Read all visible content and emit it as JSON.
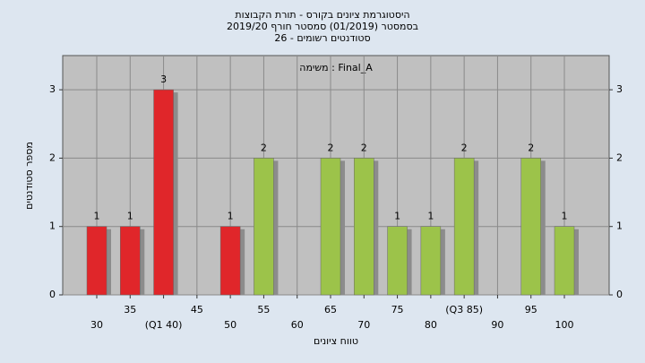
{
  "chart_data": {
    "type": "bar",
    "title": "היסטוגרמת ציונים בקורס - תורת הקבוצות",
    "subtitle": "בסמסטר  (01/2019)  סמסטר חורף 2019/20",
    "subtitle2": "סטודנטים רשומים - 26",
    "annotation": "משימה : Final_A",
    "x_label": "טווח ציונים",
    "y_label": "מספר סטודנטים",
    "categories": [
      "30",
      "35",
      "(Q1 40)",
      "45",
      "50",
      "55",
      "60",
      "65",
      "70",
      "75",
      "80",
      "(Q3 85)",
      "90",
      "95",
      "100"
    ],
    "values": [
      1,
      1,
      3,
      0,
      1,
      2,
      0,
      2,
      2,
      1,
      1,
      2,
      0,
      2,
      1
    ],
    "colors": [
      "#e0262a",
      "#e0262a",
      "#e0262a",
      "#e0262a",
      "#e0262a",
      "#9cc34a",
      "#9cc34a",
      "#9cc34a",
      "#9cc34a",
      "#9cc34a",
      "#9cc34a",
      "#9cc34a",
      "#9cc34a",
      "#9cc34a",
      "#9cc34a"
    ],
    "ylim": [
      0,
      3.5
    ],
    "yticks": [
      0,
      1,
      2,
      3
    ],
    "grid": true
  }
}
